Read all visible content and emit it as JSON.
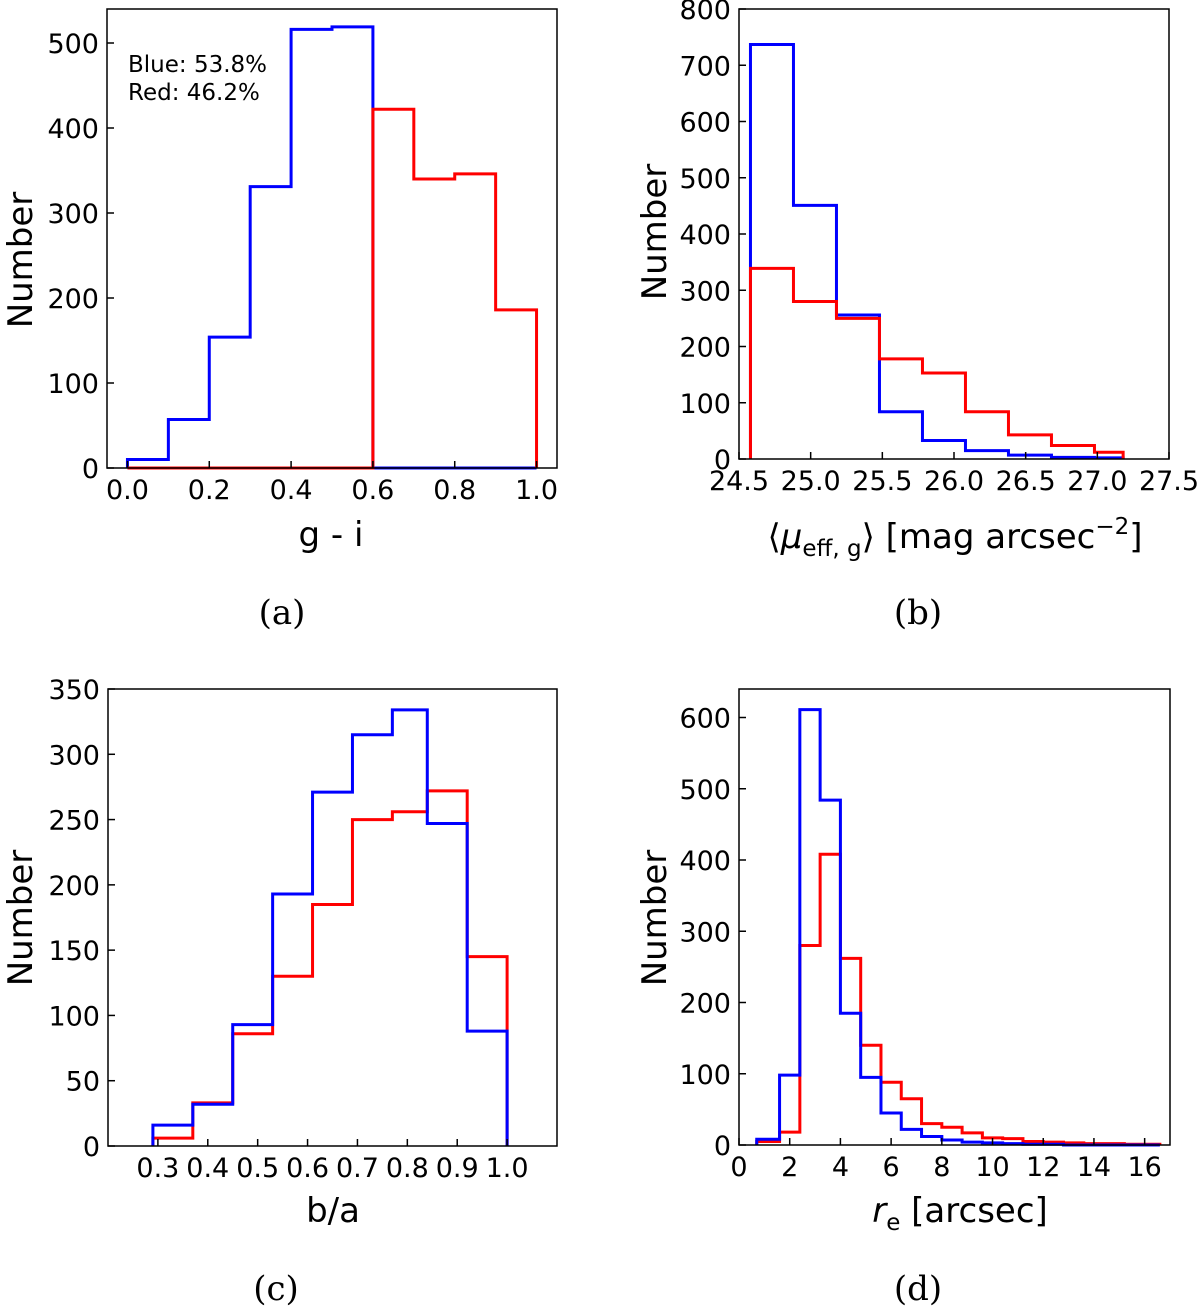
{
  "colors": {
    "blue": "#0000ff",
    "red": "#ff0000",
    "axis": "#000000"
  },
  "chart_data": [
    {
      "type": "step-histogram",
      "caption": "(a)",
      "xlabel": "g - i",
      "ylabel": "Number",
      "xlim": [
        -0.05,
        1.05
      ],
      "ylim": [
        0,
        540
      ],
      "xticks": [
        0.0,
        0.2,
        0.4,
        0.6,
        0.8,
        1.0
      ],
      "xtick_labels": [
        "0.0",
        "0.2",
        "0.4",
        "0.6",
        "0.8",
        "1.0"
      ],
      "yticks": [
        0,
        100,
        200,
        300,
        400,
        500
      ],
      "ytick_labels": [
        "0",
        "100",
        "200",
        "300",
        "400",
        "500"
      ],
      "annotations": [
        "Blue: 53.8%",
        "Red: 46.2%"
      ],
      "series": [
        {
          "name": "Blue",
          "color": "#0000ff",
          "edges": [
            0.0,
            0.1,
            0.2,
            0.3,
            0.4,
            0.5,
            0.6,
            0.7,
            0.8,
            0.9,
            1.0
          ],
          "values": [
            10,
            57,
            154,
            331,
            516,
            519,
            0,
            0,
            0,
            0
          ]
        },
        {
          "name": "Red",
          "color": "#ff0000",
          "edges": [
            0.0,
            0.1,
            0.2,
            0.3,
            0.4,
            0.5,
            0.6,
            0.7,
            0.8,
            0.9,
            1.0
          ],
          "values": [
            0,
            0,
            0,
            0,
            0,
            0,
            422,
            340,
            346,
            186
          ]
        }
      ]
    },
    {
      "type": "step-histogram",
      "caption": "(b)",
      "xlabel_parts": {
        "open": "⟨",
        "mu": "μ",
        "sub": "eff, g",
        "close": "⟩",
        "unit": " [mag arcsec",
        "sup": "−2",
        "end": "]"
      },
      "ylabel": "Number",
      "xlim": [
        24.5,
        27.5
      ],
      "ylim": [
        0,
        800
      ],
      "xticks": [
        24.5,
        25.0,
        25.5,
        26.0,
        26.5,
        27.0,
        27.5
      ],
      "xtick_labels": [
        "24.5",
        "25.0",
        "25.5",
        "26.0",
        "26.5",
        "27.0",
        "27.5"
      ],
      "yticks": [
        0,
        100,
        200,
        300,
        400,
        500,
        600,
        700,
        800
      ],
      "ytick_labels": [
        "0",
        "100",
        "200",
        "300",
        "400",
        "500",
        "600",
        "700",
        "800"
      ],
      "series": [
        {
          "name": "Blue",
          "color": "#0000ff",
          "edges": [
            24.58,
            24.88,
            25.18,
            25.48,
            25.78,
            26.08,
            26.38,
            26.68,
            26.98,
            27.18
          ],
          "values": [
            737,
            451,
            256,
            84,
            33,
            15,
            7,
            3,
            2
          ]
        },
        {
          "name": "Red",
          "color": "#ff0000",
          "edges": [
            24.58,
            24.88,
            25.18,
            25.48,
            25.78,
            26.08,
            26.38,
            26.68,
            26.98,
            27.18
          ],
          "values": [
            339,
            280,
            250,
            178,
            153,
            84,
            43,
            24,
            12
          ]
        }
      ]
    },
    {
      "type": "step-histogram",
      "caption": "(c)",
      "xlabel": "b/a",
      "ylabel": "Number",
      "xlim": [
        0.2,
        1.1
      ],
      "ylim": [
        0,
        350
      ],
      "xticks": [
        0.3,
        0.4,
        0.5,
        0.6,
        0.7,
        0.8,
        0.9,
        1.0
      ],
      "xtick_labels": [
        "0.3",
        "0.4",
        "0.5",
        "0.6",
        "0.7",
        "0.8",
        "0.9",
        "1.0"
      ],
      "yticks": [
        0,
        50,
        100,
        150,
        200,
        250,
        300,
        350
      ],
      "ytick_labels": [
        "0",
        "50",
        "100",
        "150",
        "200",
        "250",
        "300",
        "350"
      ],
      "series": [
        {
          "name": "Red",
          "color": "#ff0000",
          "edges": [
            0.29,
            0.37,
            0.45,
            0.53,
            0.61,
            0.69,
            0.77,
            0.84,
            0.92,
            1.0
          ],
          "values": [
            6,
            33,
            86,
            130,
            185,
            250,
            256,
            272,
            145
          ]
        },
        {
          "name": "Blue",
          "color": "#0000ff",
          "edges": [
            0.29,
            0.37,
            0.45,
            0.53,
            0.61,
            0.69,
            0.77,
            0.84,
            0.92,
            1.0
          ],
          "values": [
            16,
            32,
            93,
            193,
            271,
            315,
            334,
            247,
            88
          ]
        }
      ]
    },
    {
      "type": "step-histogram",
      "caption": "(d)",
      "xlabel_parts": {
        "r": "r",
        "sub": "e",
        "unit": " [arcsec]"
      },
      "ylabel": "Number",
      "xlim": [
        0,
        17
      ],
      "ylim": [
        0,
        640
      ],
      "xticks": [
        0,
        2,
        4,
        6,
        8,
        10,
        12,
        14,
        16
      ],
      "xtick_labels": [
        "0",
        "2",
        "4",
        "6",
        "8",
        "10",
        "12",
        "14",
        "16"
      ],
      "yticks": [
        0,
        100,
        200,
        300,
        400,
        500,
        600
      ],
      "ytick_labels": [
        "0",
        "100",
        "200",
        "300",
        "400",
        "500",
        "600"
      ],
      "series": [
        {
          "name": "Red",
          "color": "#ff0000",
          "edges": [
            0.7,
            1.6,
            2.4,
            3.2,
            4.0,
            4.8,
            5.6,
            6.4,
            7.2,
            8.0,
            8.8,
            9.6,
            10.4,
            11.2,
            12.0,
            12.8,
            13.6,
            14.4,
            15.2,
            16.0,
            16.6
          ],
          "values": [
            5,
            18,
            280,
            408,
            262,
            140,
            88,
            65,
            30,
            25,
            17,
            10,
            9,
            5,
            4,
            3,
            2,
            2,
            1,
            1
          ]
        },
        {
          "name": "Blue",
          "color": "#0000ff",
          "edges": [
            0.7,
            1.6,
            2.4,
            3.2,
            4.0,
            4.8,
            5.6,
            6.4,
            7.2,
            8.0,
            8.8,
            9.6,
            10.4,
            11.2,
            12.0,
            12.8,
            13.6,
            14.4,
            15.2,
            16.0,
            16.6
          ],
          "values": [
            8,
            98,
            611,
            484,
            185,
            95,
            45,
            22,
            12,
            7,
            4,
            3,
            2,
            1,
            1,
            0,
            0,
            0,
            0,
            0
          ]
        }
      ]
    }
  ]
}
